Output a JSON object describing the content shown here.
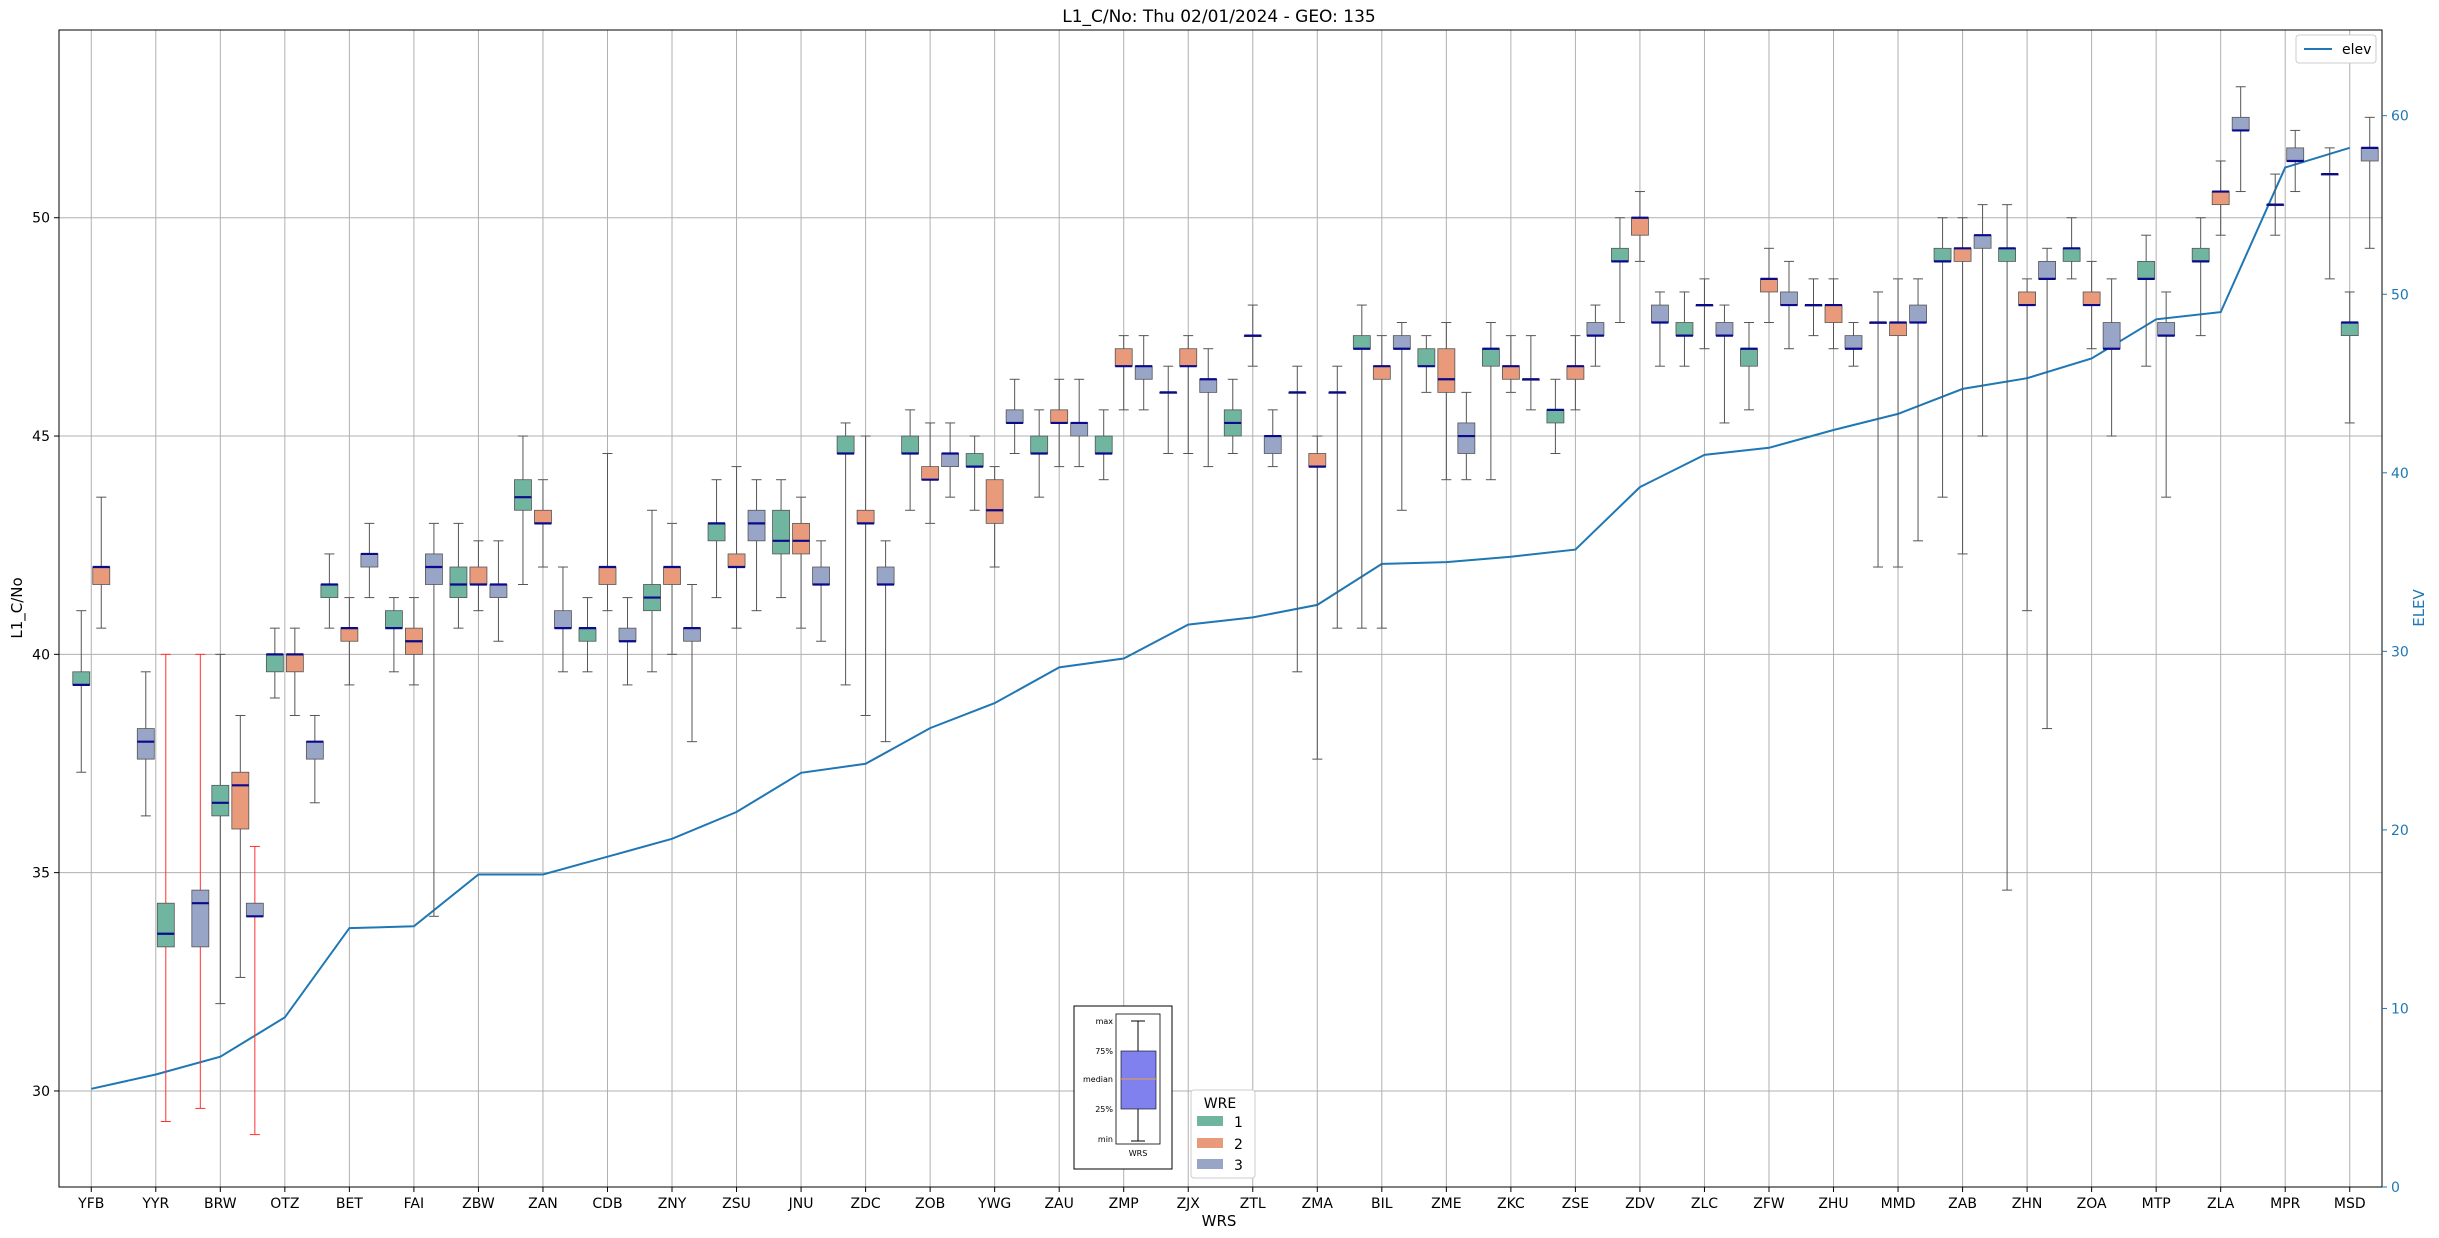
{
  "chart_data": {
    "type": "box",
    "title": "L1_C/No: Thu 02/01/2024 - GEO: 135",
    "xlabel": "WRS",
    "ylabel": "L1_C/No",
    "y2label": "ELEV",
    "ylim": [
      27.8,
      54.3
    ],
    "y2lim": [
      0,
      64.8
    ],
    "yticks": [
      30,
      35,
      40,
      45,
      50
    ],
    "y2ticks": [
      0,
      10,
      20,
      30,
      40,
      50,
      60
    ],
    "grid": true,
    "categories": [
      "YFB",
      "YYR",
      "BRW",
      "OTZ",
      "BET",
      "FAI",
      "ZBW",
      "ZAN",
      "CDB",
      "ZNY",
      "ZSU",
      "JNU",
      "ZDC",
      "ZOB",
      "YWG",
      "ZAU",
      "ZMP",
      "ZJX",
      "ZTL",
      "ZMA",
      "BIL",
      "ZME",
      "ZKC",
      "ZSE",
      "ZDV",
      "ZLC",
      "ZFW",
      "ZHU",
      "MMD",
      "ZAB",
      "ZHN",
      "ZOA",
      "MTP",
      "ZLA",
      "MPR",
      "MSD"
    ],
    "wre_legend": {
      "title": "WRE",
      "entries": [
        "1",
        "2",
        "3"
      ]
    },
    "wre_colors": {
      "1": "#6fb5a0",
      "2": "#e89a7b",
      "3": "#98a5c7"
    },
    "line_series": {
      "name": "elev",
      "color": "#1f77b4",
      "values": [
        5.5,
        6.3,
        7.3,
        9.5,
        14.5,
        14.6,
        17.5,
        17.5,
        18.5,
        19.5,
        21.0,
        23.2,
        23.7,
        25.7,
        27.1,
        29.1,
        29.6,
        31.5,
        31.9,
        32.6,
        34.9,
        35.0,
        35.3,
        35.7,
        39.2,
        41.0,
        41.4,
        42.4,
        43.3,
        44.7,
        45.3,
        46.4,
        48.6,
        49.0,
        57.1,
        58.2
      ]
    },
    "series": [
      {
        "cat": "YFB",
        "wre": "1",
        "min": 37.3,
        "q1": 39.3,
        "median": 39.3,
        "q3": 39.6,
        "max": 41.0
      },
      {
        "cat": "YFB",
        "wre": "2",
        "min": 40.6,
        "q1": 41.6,
        "median": 42.0,
        "q3": 42.0,
        "max": 43.6
      },
      {
        "cat": "YYR",
        "wre": "3",
        "min": 36.3,
        "q1": 37.6,
        "median": 38.0,
        "q3": 38.3,
        "max": 39.6
      },
      {
        "cat": "YYR",
        "wre": "1",
        "min": 29.3,
        "q1": 33.3,
        "median": 33.6,
        "q3": 34.3,
        "max": 40.0,
        "red": true
      },
      {
        "cat": "BRW",
        "wre": "3",
        "min": 29.6,
        "q1": 33.3,
        "median": 34.3,
        "q3": 34.6,
        "max": 40.0,
        "red": true
      },
      {
        "cat": "BRW",
        "wre": "1",
        "min": 32.0,
        "q1": 36.3,
        "median": 36.6,
        "q3": 37.0,
        "max": 40.0
      },
      {
        "cat": "BRW",
        "wre": "2",
        "min": 32.6,
        "q1": 36.0,
        "median": 37.0,
        "q3": 37.3,
        "max": 38.6
      },
      {
        "cat": "OTZ",
        "wre": "3",
        "min": 29.0,
        "q1": 34.0,
        "median": 34.0,
        "q3": 34.3,
        "max": 35.6,
        "red": true
      },
      {
        "cat": "OTZ",
        "wre": "1",
        "min": 39.0,
        "q1": 39.6,
        "median": 40.0,
        "q3": 40.0,
        "max": 40.6
      },
      {
        "cat": "OTZ",
        "wre": "2",
        "min": 38.6,
        "q1": 39.6,
        "median": 40.0,
        "q3": 40.0,
        "max": 40.6
      },
      {
        "cat": "OTZ",
        "wre": "3",
        "min": 36.6,
        "q1": 37.6,
        "median": 38.0,
        "q3": 38.0,
        "max": 38.6
      },
      {
        "cat": "BET",
        "wre": "1",
        "min": 40.6,
        "q1": 41.3,
        "median": 41.6,
        "q3": 41.6,
        "max": 42.3
      },
      {
        "cat": "BET",
        "wre": "2",
        "min": 39.3,
        "q1": 40.3,
        "median": 40.6,
        "q3": 40.6,
        "max": 41.3
      },
      {
        "cat": "BET",
        "wre": "3",
        "min": 41.3,
        "q1": 42.0,
        "median": 42.3,
        "q3": 42.3,
        "max": 43.0
      },
      {
        "cat": "FAI",
        "wre": "1",
        "min": 39.6,
        "q1": 40.6,
        "median": 40.6,
        "q3": 41.0,
        "max": 41.3
      },
      {
        "cat": "FAI",
        "wre": "2",
        "min": 39.3,
        "q1": 40.0,
        "median": 40.3,
        "q3": 40.6,
        "max": 41.3
      },
      {
        "cat": "FAI",
        "wre": "3",
        "min": 34.0,
        "q1": 41.6,
        "median": 42.0,
        "q3": 42.3,
        "max": 43.0
      },
      {
        "cat": "ZBW",
        "wre": "1",
        "min": 40.6,
        "q1": 41.3,
        "median": 41.6,
        "q3": 42.0,
        "max": 43.0
      },
      {
        "cat": "ZBW",
        "wre": "2",
        "min": 41.0,
        "q1": 41.6,
        "median": 41.6,
        "q3": 42.0,
        "max": 42.6
      },
      {
        "cat": "ZBW",
        "wre": "3",
        "min": 40.3,
        "q1": 41.3,
        "median": 41.6,
        "q3": 41.6,
        "max": 42.6
      },
      {
        "cat": "ZAN",
        "wre": "1",
        "min": 41.6,
        "q1": 43.3,
        "median": 43.6,
        "q3": 44.0,
        "max": 45.0
      },
      {
        "cat": "ZAN",
        "wre": "2",
        "min": 42.0,
        "q1": 43.0,
        "median": 43.0,
        "q3": 43.3,
        "max": 44.0
      },
      {
        "cat": "ZAN",
        "wre": "3",
        "min": 39.6,
        "q1": 40.6,
        "median": 40.6,
        "q3": 41.0,
        "max": 42.0
      },
      {
        "cat": "CDB",
        "wre": "1",
        "min": 39.6,
        "q1": 40.3,
        "median": 40.6,
        "q3": 40.6,
        "max": 41.3
      },
      {
        "cat": "CDB",
        "wre": "2",
        "min": 41.0,
        "q1": 41.6,
        "median": 42.0,
        "q3": 42.0,
        "max": 44.6
      },
      {
        "cat": "CDB",
        "wre": "3",
        "min": 39.3,
        "q1": 40.3,
        "median": 40.3,
        "q3": 40.6,
        "max": 41.3
      },
      {
        "cat": "ZNY",
        "wre": "1",
        "min": 39.6,
        "q1": 41.0,
        "median": 41.3,
        "q3": 41.6,
        "max": 43.3
      },
      {
        "cat": "ZNY",
        "wre": "2",
        "min": 40.0,
        "q1": 41.6,
        "median": 42.0,
        "q3": 42.0,
        "max": 43.0
      },
      {
        "cat": "ZNY",
        "wre": "3",
        "min": 38.0,
        "q1": 40.3,
        "median": 40.6,
        "q3": 40.6,
        "max": 41.6
      },
      {
        "cat": "ZSU",
        "wre": "1",
        "min": 41.3,
        "q1": 42.6,
        "median": 43.0,
        "q3": 43.0,
        "max": 44.0
      },
      {
        "cat": "ZSU",
        "wre": "2",
        "min": 40.6,
        "q1": 42.0,
        "median": 42.0,
        "q3": 42.3,
        "max": 44.3
      },
      {
        "cat": "ZSU",
        "wre": "3",
        "min": 41.0,
        "q1": 42.6,
        "median": 43.0,
        "q3": 43.3,
        "max": 44.0
      },
      {
        "cat": "JNU",
        "wre": "1",
        "min": 41.3,
        "q1": 42.3,
        "median": 42.6,
        "q3": 43.3,
        "max": 44.0
      },
      {
        "cat": "JNU",
        "wre": "2",
        "min": 40.6,
        "q1": 42.3,
        "median": 42.6,
        "q3": 43.0,
        "max": 43.6
      },
      {
        "cat": "JNU",
        "wre": "3",
        "min": 40.3,
        "q1": 41.6,
        "median": 41.6,
        "q3": 42.0,
        "max": 42.6
      },
      {
        "cat": "ZDC",
        "wre": "1",
        "min": 39.3,
        "q1": 44.6,
        "median": 44.6,
        "q3": 45.0,
        "max": 45.3
      },
      {
        "cat": "ZDC",
        "wre": "2",
        "min": 38.6,
        "q1": 43.0,
        "median": 43.0,
        "q3": 43.3,
        "max": 45.0
      },
      {
        "cat": "ZDC",
        "wre": "3",
        "min": 38.0,
        "q1": 41.6,
        "median": 41.6,
        "q3": 42.0,
        "max": 42.6
      },
      {
        "cat": "ZOB",
        "wre": "1",
        "min": 43.3,
        "q1": 44.6,
        "median": 44.6,
        "q3": 45.0,
        "max": 45.6
      },
      {
        "cat": "ZOB",
        "wre": "2",
        "min": 43.0,
        "q1": 44.0,
        "median": 44.0,
        "q3": 44.3,
        "max": 45.3
      },
      {
        "cat": "ZOB",
        "wre": "3",
        "min": 43.6,
        "q1": 44.3,
        "median": 44.6,
        "q3": 44.6,
        "max": 45.3
      },
      {
        "cat": "YWG",
        "wre": "1",
        "min": 43.3,
        "q1": 44.3,
        "median": 44.3,
        "q3": 44.6,
        "max": 45.0
      },
      {
        "cat": "YWG",
        "wre": "2",
        "min": 42.0,
        "q1": 43.0,
        "median": 43.3,
        "q3": 44.0,
        "max": 44.3
      },
      {
        "cat": "YWG",
        "wre": "3",
        "min": 44.6,
        "q1": 45.3,
        "median": 45.3,
        "q3": 45.6,
        "max": 46.3
      },
      {
        "cat": "ZAU",
        "wre": "1",
        "min": 43.6,
        "q1": 44.6,
        "median": 44.6,
        "q3": 45.0,
        "max": 45.6
      },
      {
        "cat": "ZAU",
        "wre": "2",
        "min": 44.3,
        "q1": 45.3,
        "median": 45.3,
        "q3": 45.6,
        "max": 46.3
      },
      {
        "cat": "ZAU",
        "wre": "3",
        "min": 44.3,
        "q1": 45.0,
        "median": 45.3,
        "q3": 45.3,
        "max": 46.3
      },
      {
        "cat": "ZMP",
        "wre": "1",
        "min": 44.0,
        "q1": 44.6,
        "median": 44.6,
        "q3": 45.0,
        "max": 45.6
      },
      {
        "cat": "ZMP",
        "wre": "2",
        "min": 45.6,
        "q1": 46.6,
        "median": 46.6,
        "q3": 47.0,
        "max": 47.3
      },
      {
        "cat": "ZMP",
        "wre": "3",
        "min": 45.6,
        "q1": 46.3,
        "median": 46.6,
        "q3": 46.6,
        "max": 47.3
      },
      {
        "cat": "ZJX",
        "wre": "3",
        "min": 44.6,
        "q1": 46.0,
        "median": 46.0,
        "q3": 46.0,
        "max": 46.6
      },
      {
        "cat": "ZJX",
        "wre": "2",
        "min": 44.6,
        "q1": 46.6,
        "median": 46.6,
        "q3": 47.0,
        "max": 47.3
      },
      {
        "cat": "ZJX",
        "wre": "3",
        "min": 44.3,
        "q1": 46.0,
        "median": 46.3,
        "q3": 46.3,
        "max": 47.0
      },
      {
        "cat": "ZTL",
        "wre": "1",
        "min": 44.6,
        "q1": 45.0,
        "median": 45.3,
        "q3": 45.6,
        "max": 46.3
      },
      {
        "cat": "ZTL",
        "wre": "3",
        "min": 46.6,
        "q1": 47.3,
        "median": 47.3,
        "q3": 47.3,
        "max": 48.0
      },
      {
        "cat": "ZTL",
        "wre": "3",
        "min": 44.3,
        "q1": 44.6,
        "median": 45.0,
        "q3": 45.0,
        "max": 45.6
      },
      {
        "cat": "ZMA",
        "wre": "3",
        "min": 39.6,
        "q1": 46.0,
        "median": 46.0,
        "q3": 46.0,
        "max": 46.6
      },
      {
        "cat": "ZMA",
        "wre": "2",
        "min": 37.6,
        "q1": 44.3,
        "median": 44.3,
        "q3": 44.6,
        "max": 45.0
      },
      {
        "cat": "ZMA",
        "wre": "3",
        "min": 40.6,
        "q1": 46.0,
        "median": 46.0,
        "q3": 46.0,
        "max": 46.6
      },
      {
        "cat": "BIL",
        "wre": "1",
        "min": 40.6,
        "q1": 47.0,
        "median": 47.0,
        "q3": 47.3,
        "max": 48.0
      },
      {
        "cat": "BIL",
        "wre": "2",
        "min": 40.6,
        "q1": 46.3,
        "median": 46.6,
        "q3": 46.6,
        "max": 47.3
      },
      {
        "cat": "BIL",
        "wre": "3",
        "min": 43.3,
        "q1": 47.0,
        "median": 47.0,
        "q3": 47.3,
        "max": 47.6
      },
      {
        "cat": "ZME",
        "wre": "1",
        "min": 46.0,
        "q1": 46.6,
        "median": 46.6,
        "q3": 47.0,
        "max": 47.3
      },
      {
        "cat": "ZME",
        "wre": "2",
        "min": 44.0,
        "q1": 46.0,
        "median": 46.3,
        "q3": 47.0,
        "max": 47.6
      },
      {
        "cat": "ZME",
        "wre": "3",
        "min": 44.0,
        "q1": 44.6,
        "median": 45.0,
        "q3": 45.3,
        "max": 46.0
      },
      {
        "cat": "ZKC",
        "wre": "1",
        "min": 44.0,
        "q1": 46.6,
        "median": 47.0,
        "q3": 47.0,
        "max": 47.6
      },
      {
        "cat": "ZKC",
        "wre": "2",
        "min": 46.0,
        "q1": 46.3,
        "median": 46.6,
        "q3": 46.6,
        "max": 47.3
      },
      {
        "cat": "ZKC",
        "wre": "3",
        "min": 45.6,
        "q1": 46.3,
        "median": 46.3,
        "q3": 46.3,
        "max": 47.3
      },
      {
        "cat": "ZSE",
        "wre": "1",
        "min": 44.6,
        "q1": 45.3,
        "median": 45.6,
        "q3": 45.6,
        "max": 46.3
      },
      {
        "cat": "ZSE",
        "wre": "2",
        "min": 45.6,
        "q1": 46.3,
        "median": 46.6,
        "q3": 46.6,
        "max": 47.3
      },
      {
        "cat": "ZSE",
        "wre": "3",
        "min": 46.6,
        "q1": 47.3,
        "median": 47.3,
        "q3": 47.6,
        "max": 48.0
      },
      {
        "cat": "ZDV",
        "wre": "1",
        "min": 47.6,
        "q1": 49.0,
        "median": 49.0,
        "q3": 49.3,
        "max": 50.0
      },
      {
        "cat": "ZDV",
        "wre": "2",
        "min": 49.0,
        "q1": 49.6,
        "median": 50.0,
        "q3": 50.0,
        "max": 50.6
      },
      {
        "cat": "ZDV",
        "wre": "3",
        "min": 46.6,
        "q1": 47.6,
        "median": 47.6,
        "q3": 48.0,
        "max": 48.3
      },
      {
        "cat": "ZLC",
        "wre": "1",
        "min": 46.6,
        "q1": 47.3,
        "median": 47.3,
        "q3": 47.6,
        "max": 48.3
      },
      {
        "cat": "ZLC",
        "wre": "3",
        "min": 47.0,
        "q1": 48.0,
        "median": 48.0,
        "q3": 48.0,
        "max": 48.6
      },
      {
        "cat": "ZLC",
        "wre": "3",
        "min": 45.3,
        "q1": 47.3,
        "median": 47.3,
        "q3": 47.6,
        "max": 48.0
      },
      {
        "cat": "ZFW",
        "wre": "1",
        "min": 45.6,
        "q1": 46.6,
        "median": 47.0,
        "q3": 47.0,
        "max": 47.6
      },
      {
        "cat": "ZFW",
        "wre": "2",
        "min": 47.6,
        "q1": 48.3,
        "median": 48.6,
        "q3": 48.6,
        "max": 49.3
      },
      {
        "cat": "ZFW",
        "wre": "3",
        "min": 47.0,
        "q1": 48.0,
        "median": 48.0,
        "q3": 48.3,
        "max": 49.0
      },
      {
        "cat": "ZHU",
        "wre": "3",
        "min": 47.3,
        "q1": 48.0,
        "median": 48.0,
        "q3": 48.0,
        "max": 48.6
      },
      {
        "cat": "ZHU",
        "wre": "2",
        "min": 47.0,
        "q1": 47.6,
        "median": 48.0,
        "q3": 48.0,
        "max": 48.6
      },
      {
        "cat": "ZHU",
        "wre": "3",
        "min": 46.6,
        "q1": 47.0,
        "median": 47.0,
        "q3": 47.3,
        "max": 47.6
      },
      {
        "cat": "MMD",
        "wre": "3",
        "min": 42.0,
        "q1": 47.6,
        "median": 47.6,
        "q3": 47.6,
        "max": 48.3
      },
      {
        "cat": "MMD",
        "wre": "2",
        "min": 42.0,
        "q1": 47.3,
        "median": 47.6,
        "q3": 47.6,
        "max": 48.6
      },
      {
        "cat": "MMD",
        "wre": "3",
        "min": 42.6,
        "q1": 47.6,
        "median": 47.6,
        "q3": 48.0,
        "max": 48.6
      },
      {
        "cat": "ZAB",
        "wre": "1",
        "min": 43.6,
        "q1": 49.0,
        "median": 49.0,
        "q3": 49.3,
        "max": 50.0
      },
      {
        "cat": "ZAB",
        "wre": "2",
        "min": 42.3,
        "q1": 49.0,
        "median": 49.3,
        "q3": 49.3,
        "max": 50.0
      },
      {
        "cat": "ZAB",
        "wre": "3",
        "min": 45.0,
        "q1": 49.3,
        "median": 49.6,
        "q3": 49.6,
        "max": 50.3
      },
      {
        "cat": "ZHN",
        "wre": "1",
        "min": 34.6,
        "q1": 49.0,
        "median": 49.3,
        "q3": 49.3,
        "max": 50.3
      },
      {
        "cat": "ZHN",
        "wre": "2",
        "min": 41.0,
        "q1": 48.0,
        "median": 48.0,
        "q3": 48.3,
        "max": 48.6
      },
      {
        "cat": "ZHN",
        "wre": "3",
        "min": 38.3,
        "q1": 48.6,
        "median": 48.6,
        "q3": 49.0,
        "max": 49.3
      },
      {
        "cat": "ZOA",
        "wre": "1",
        "min": 48.6,
        "q1": 49.0,
        "median": 49.3,
        "q3": 49.3,
        "max": 50.0
      },
      {
        "cat": "ZOA",
        "wre": "2",
        "min": 47.0,
        "q1": 48.0,
        "median": 48.0,
        "q3": 48.3,
        "max": 49.0
      },
      {
        "cat": "ZOA",
        "wre": "3",
        "min": 45.0,
        "q1": 47.0,
        "median": 47.0,
        "q3": 47.6,
        "max": 48.6
      },
      {
        "cat": "MTP",
        "wre": "1",
        "min": 46.6,
        "q1": 48.6,
        "median": 48.6,
        "q3": 49.0,
        "max": 49.6
      },
      {
        "cat": "MTP",
        "wre": "3",
        "min": 43.6,
        "q1": 47.3,
        "median": 47.3,
        "q3": 47.6,
        "max": 48.3
      },
      {
        "cat": "ZLA",
        "wre": "1",
        "min": 47.3,
        "q1": 49.0,
        "median": 49.0,
        "q3": 49.3,
        "max": 50.0
      },
      {
        "cat": "ZLA",
        "wre": "2",
        "min": 49.6,
        "q1": 50.3,
        "median": 50.6,
        "q3": 50.6,
        "max": 51.3
      },
      {
        "cat": "ZLA",
        "wre": "3",
        "min": 50.6,
        "q1": 52.0,
        "median": 52.0,
        "q3": 52.3,
        "max": 53.0
      },
      {
        "cat": "MPR",
        "wre": "3",
        "min": 49.6,
        "q1": 50.3,
        "median": 50.3,
        "q3": 50.3,
        "max": 51.0
      },
      {
        "cat": "MPR",
        "wre": "3",
        "min": 50.6,
        "q1": 51.3,
        "median": 51.3,
        "q3": 51.6,
        "max": 52.0
      },
      {
        "cat": "MSD",
        "wre": "3",
        "min": 48.6,
        "q1": 51.0,
        "median": 51.0,
        "q3": 51.0,
        "max": 51.6
      },
      {
        "cat": "MSD",
        "wre": "1",
        "min": 45.3,
        "q1": 47.3,
        "median": 47.6,
        "q3": 47.6,
        "max": 48.3
      },
      {
        "cat": "MSD",
        "wre": "3",
        "min": 49.3,
        "q1": 51.3,
        "median": 51.6,
        "q3": 51.6,
        "max": 52.3
      }
    ]
  },
  "legend": {
    "line_label": "elev"
  },
  "key_box": {
    "labels": [
      "max",
      "75%",
      "median",
      "25%",
      "min"
    ],
    "xlabel": "WRS"
  }
}
